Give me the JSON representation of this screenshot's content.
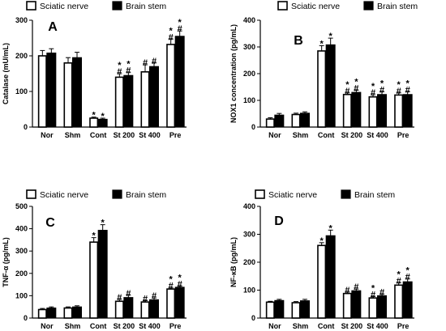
{
  "figure": {
    "legend": {
      "series_1": "Sciatic nerve",
      "series_2": "Brain stem"
    }
  },
  "chart_data": [
    {
      "panel": "A",
      "type": "bar",
      "ylabel": "Catalase (mU/mL)",
      "ylim": [
        0,
        300
      ],
      "yticks": [
        0,
        100,
        200,
        300
      ],
      "categories": [
        "Nor",
        "Shm",
        "Cont",
        "St 200",
        "St 400",
        "Pre"
      ],
      "series": [
        {
          "name": "Sciatic nerve",
          "color": "#ffffff",
          "values": [
            200,
            180,
            25,
            140,
            155,
            232
          ],
          "errors": [
            15,
            15,
            3,
            10,
            20,
            15
          ]
        },
        {
          "name": "Brain stem",
          "color": "#000000",
          "values": [
            208,
            195,
            22,
            145,
            170,
            255
          ],
          "errors": [
            12,
            15,
            3,
            8,
            10,
            15
          ]
        }
      ],
      "annotations": [
        [
          "",
          "",
          "*",
          "*\n#",
          "#",
          "*\n#"
        ],
        [
          "",
          "",
          "*",
          "*\n#",
          "#",
          "*\n#"
        ]
      ]
    },
    {
      "panel": "B",
      "type": "bar",
      "ylabel": "NOX1 concentration (pg/mL)",
      "ylim": [
        0,
        400
      ],
      "yticks": [
        0,
        100,
        200,
        300,
        400
      ],
      "categories": [
        "Nor",
        "Shm",
        "Cont",
        "St 200",
        "St 400",
        "Pre"
      ],
      "series": [
        {
          "name": "Sciatic nerve",
          "color": "#ffffff",
          "values": [
            30,
            47,
            285,
            122,
            113,
            120
          ],
          "errors": [
            5,
            5,
            20,
            6,
            8,
            8
          ]
        },
        {
          "name": "Brain stem",
          "color": "#000000",
          "values": [
            45,
            52,
            308,
            130,
            122,
            122
          ],
          "errors": [
            6,
            5,
            25,
            8,
            10,
            10
          ]
        }
      ],
      "annotations": [
        [
          "",
          "",
          "*",
          "*\n#",
          "*\n#",
          "*\n#"
        ],
        [
          "",
          "",
          "*",
          "*\n#",
          "*\n#",
          "*\n#"
        ]
      ]
    },
    {
      "panel": "C",
      "type": "bar",
      "ylabel": "TNF-α (pg/mL)",
      "ylim": [
        0,
        500
      ],
      "yticks": [
        0,
        100,
        200,
        300,
        400,
        500
      ],
      "categories": [
        "Nor",
        "Shm",
        "Cont",
        "St 200",
        "St 400",
        "Pre"
      ],
      "series": [
        {
          "name": "Sciatic nerve",
          "color": "#ffffff",
          "values": [
            38,
            45,
            340,
            75,
            72,
            130
          ],
          "errors": [
            5,
            5,
            20,
            8,
            6,
            5
          ]
        },
        {
          "name": "Brain stem",
          "color": "#000000",
          "values": [
            45,
            50,
            393,
            92,
            82,
            138
          ],
          "errors": [
            5,
            5,
            25,
            10,
            8,
            5
          ]
        }
      ],
      "annotations": [
        [
          "",
          "",
          "*",
          "#",
          "#",
          "*\n#"
        ],
        [
          "",
          "",
          "*",
          "#",
          "#",
          "*\n#"
        ]
      ]
    },
    {
      "panel": "D",
      "type": "bar",
      "ylabel": "NF-κB (pg/mL)",
      "ylim": [
        0,
        400
      ],
      "yticks": [
        0,
        100,
        200,
        300,
        400
      ],
      "categories": [
        "Nor",
        "Shm",
        "Cont",
        "St 200",
        "St 400",
        "Pre"
      ],
      "series": [
        {
          "name": "Sciatic nerve",
          "color": "#ffffff",
          "values": [
            57,
            55,
            260,
            88,
            72,
            118
          ],
          "errors": [
            3,
            4,
            10,
            5,
            5,
            8
          ]
        },
        {
          "name": "Brain stem",
          "color": "#000000",
          "values": [
            63,
            62,
            295,
            98,
            80,
            130
          ],
          "errors": [
            4,
            5,
            20,
            6,
            5,
            10
          ]
        }
      ],
      "annotations": [
        [
          "",
          "",
          "*",
          "#",
          "*\n#",
          "*\n#"
        ],
        [
          "",
          "",
          "*",
          "#",
          "#",
          "*\n#"
        ]
      ]
    }
  ]
}
